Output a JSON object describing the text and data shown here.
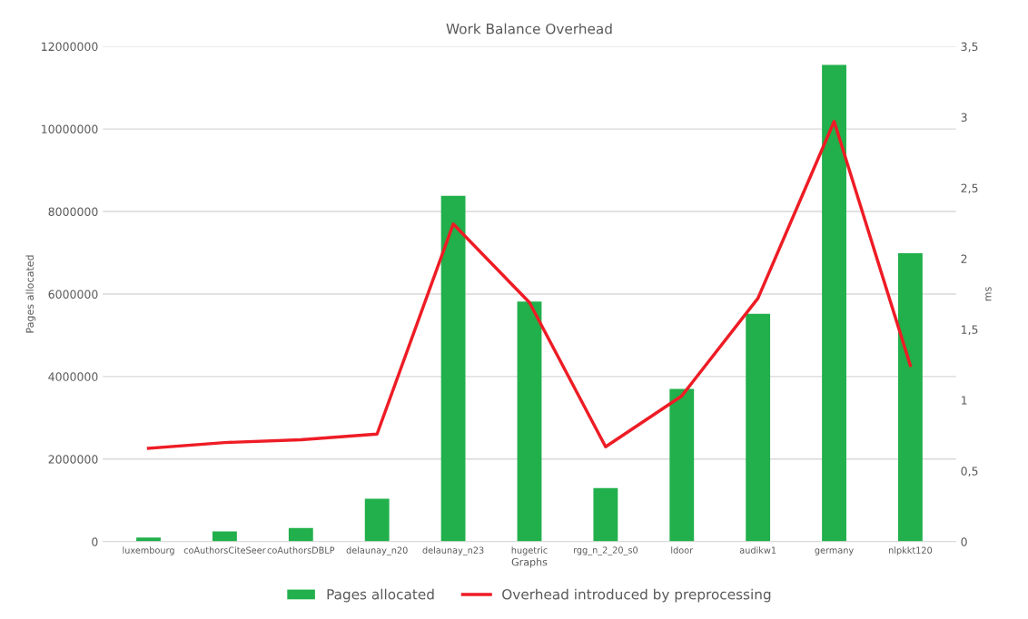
{
  "chart_data": {
    "type": "bar",
    "title": "Work Balance Overhead",
    "xlabel": "Graphs",
    "ylabel": "Pages allocated",
    "y2label": "ms",
    "categories": [
      "luxembourg",
      "coAuthorsCiteSeer",
      "coAuthorsDBLP",
      "delaunay_n20",
      "delaunay_n23",
      "hugetric",
      "rgg_n_2_20_s0",
      "ldoor",
      "audikw1",
      "germany",
      "nlpkkt120"
    ],
    "series": [
      {
        "name": "Pages allocated",
        "color": "#21b04b",
        "values": [
          100000,
          250000,
          330000,
          1040000,
          8380000,
          5820000,
          1300000,
          3700000,
          5520000,
          11550000,
          6990000
        ]
      },
      {
        "name": "Overhead introduced by preprocessing",
        "type": "line",
        "axis": "y2",
        "color": "#ee1c25",
        "values": [
          0.66,
          0.7,
          0.72,
          0.76,
          2.245,
          1.69,
          0.67,
          1.03,
          1.72,
          2.97,
          1.245
        ]
      }
    ],
    "ylim": [
      0,
      12000000
    ],
    "yticks": [
      0,
      2000000,
      4000000,
      6000000,
      8000000,
      10000000,
      12000000
    ],
    "y2lim": [
      0,
      3.5
    ],
    "y2ticks": [
      0,
      {
        "value": 0.5,
        "label": "0,5"
      },
      1,
      {
        "value": 1.5,
        "label": "1,5"
      },
      2,
      {
        "value": 2.5,
        "label": "2,5"
      },
      3,
      {
        "value": 3.5,
        "label": "3,5"
      }
    ],
    "grid": "y",
    "legend": "bottom",
    "marker": "none",
    "line_style": "solid"
  }
}
